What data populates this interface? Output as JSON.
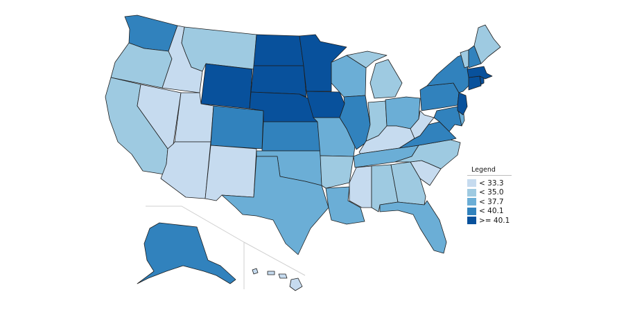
{
  "legend": {
    "title": "Legend",
    "bins": [
      {
        "label": "< 33.3",
        "color": "#c6dbef"
      },
      {
        "label": "< 35.0",
        "color": "#9ecae1"
      },
      {
        "label": "< 37.7",
        "color": "#6baed6"
      },
      {
        "label": "< 40.1",
        "color": "#3182bd"
      },
      {
        "label": ">= 40.1",
        "color": "#08519c"
      }
    ]
  },
  "states": [
    {
      "abbr": "WA",
      "bin": 3
    },
    {
      "abbr": "OR",
      "bin": 1
    },
    {
      "abbr": "CA",
      "bin": 1
    },
    {
      "abbr": "ID",
      "bin": 0
    },
    {
      "abbr": "NV",
      "bin": 0
    },
    {
      "abbr": "MT",
      "bin": 1
    },
    {
      "abbr": "WY",
      "bin": 4
    },
    {
      "abbr": "UT",
      "bin": 0
    },
    {
      "abbr": "AZ",
      "bin": 0
    },
    {
      "abbr": "CO",
      "bin": 3
    },
    {
      "abbr": "NM",
      "bin": 0
    },
    {
      "abbr": "ND",
      "bin": 4
    },
    {
      "abbr": "SD",
      "bin": 4
    },
    {
      "abbr": "NE",
      "bin": 4
    },
    {
      "abbr": "KS",
      "bin": 3
    },
    {
      "abbr": "OK",
      "bin": 2
    },
    {
      "abbr": "TX",
      "bin": 2
    },
    {
      "abbr": "MN",
      "bin": 4
    },
    {
      "abbr": "IA",
      "bin": 4
    },
    {
      "abbr": "MO",
      "bin": 2
    },
    {
      "abbr": "AR",
      "bin": 1
    },
    {
      "abbr": "LA",
      "bin": 2
    },
    {
      "abbr": "WI",
      "bin": 2
    },
    {
      "abbr": "IL",
      "bin": 3
    },
    {
      "abbr": "MI",
      "bin": 1
    },
    {
      "abbr": "IN",
      "bin": 1
    },
    {
      "abbr": "OH",
      "bin": 2
    },
    {
      "abbr": "KY",
      "bin": 0
    },
    {
      "abbr": "TN",
      "bin": 2
    },
    {
      "abbr": "MS",
      "bin": 0
    },
    {
      "abbr": "AL",
      "bin": 1
    },
    {
      "abbr": "GA",
      "bin": 1
    },
    {
      "abbr": "FL",
      "bin": 2
    },
    {
      "abbr": "SC",
      "bin": 0
    },
    {
      "abbr": "NC",
      "bin": 1
    },
    {
      "abbr": "VA",
      "bin": 3
    },
    {
      "abbr": "WV",
      "bin": 0
    },
    {
      "abbr": "PA",
      "bin": 3
    },
    {
      "abbr": "NY",
      "bin": 3
    },
    {
      "abbr": "MD",
      "bin": 3
    },
    {
      "abbr": "DE",
      "bin": 2
    },
    {
      "abbr": "NJ",
      "bin": 4
    },
    {
      "abbr": "CT",
      "bin": 4
    },
    {
      "abbr": "RI",
      "bin": 4
    },
    {
      "abbr": "MA",
      "bin": 4
    },
    {
      "abbr": "VT",
      "bin": 1
    },
    {
      "abbr": "NH",
      "bin": 3
    },
    {
      "abbr": "ME",
      "bin": 1
    },
    {
      "abbr": "AK",
      "bin": 3
    },
    {
      "abbr": "HI",
      "bin": 0
    }
  ]
}
